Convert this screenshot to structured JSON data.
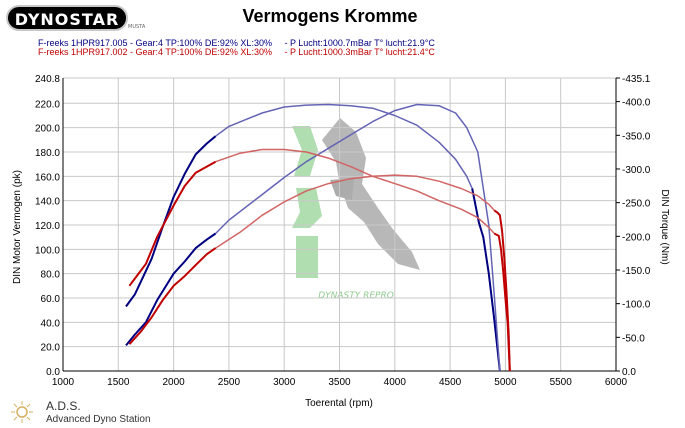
{
  "logo": {
    "text": "DYNOSTAR",
    "mark": "MUSTA"
  },
  "footer": {
    "title": "A.D.S.",
    "subtitle": "Advanced Dyno Station"
  },
  "watermark": {
    "text": "DYNASTY REPRO"
  },
  "runs": [
    {
      "text": "F-reeks 1HPR917.005 - Gear:4 TP:100% DE:92% XL:30%     - P Lucht:1000.7mBar T° lucht:21.9°C",
      "color": "#000080"
    },
    {
      "text": "F-reeks 1HPR917.002 - Gear:4 TP:100% DE:92% XL:30%     - P Lucht:1000.3mBar T° lucht:21.4°C",
      "color": "#c00000"
    }
  ],
  "chart_data": {
    "type": "line",
    "title": "Vermogens Kromme",
    "xlabel": "Toerental (rpm)",
    "ylabel_left": "DIN Motor Vermogen (pk)",
    "ylabel_right": "DIN Torque (Nm)",
    "xlim": [
      1000,
      6000
    ],
    "ylim_left": [
      0,
      240.8
    ],
    "ylim_right": [
      0,
      435.1
    ],
    "x_ticks": [
      "1000",
      "1500",
      "2000",
      "2500",
      "3000",
      "3500",
      "4000",
      "4500",
      "5000",
      "5500",
      "6000"
    ],
    "y_left_ticks": [
      "0.0",
      "20.0",
      "40.0",
      "60.0",
      "80.0",
      "100.0",
      "120.0",
      "140.0",
      "160.0",
      "180.0",
      "200.0",
      "220.0",
      "240.8"
    ],
    "y_right_ticks": [
      "0.0",
      "-50.0",
      "-100.0",
      "-150.0",
      "-200.0",
      "-250.0",
      "-300.0",
      "-350.0",
      "-400.0",
      "-435.1"
    ],
    "grid": true,
    "series": [
      {
        "color": "#000080",
        "axis": "left",
        "measure": "power",
        "style": "dark",
        "points": [
          [
            1570,
            53
          ],
          [
            1650,
            63
          ],
          [
            1800,
            92
          ],
          [
            1900,
            118
          ],
          [
            2000,
            143
          ],
          [
            2100,
            162
          ],
          [
            2200,
            178
          ],
          [
            2300,
            187
          ],
          [
            2380,
            193
          ]
        ]
      },
      {
        "color": "#6464b4",
        "axis": "left",
        "measure": "power",
        "style": "light",
        "points": [
          [
            2380,
            193
          ],
          [
            2500,
            201
          ],
          [
            2800,
            212
          ],
          [
            3000,
            217
          ],
          [
            3200,
            218.5
          ],
          [
            3400,
            219
          ],
          [
            3600,
            218
          ],
          [
            3800,
            216
          ],
          [
            4000,
            210
          ],
          [
            4200,
            202
          ],
          [
            4400,
            188
          ],
          [
            4550,
            174
          ],
          [
            4650,
            160
          ],
          [
            4700,
            150
          ],
          [
            4760,
            122
          ],
          [
            4800,
            110
          ],
          [
            4850,
            80
          ],
          [
            4900,
            42
          ],
          [
            4950,
            0
          ]
        ]
      },
      {
        "color": "#000080",
        "axis": "left",
        "measure": "power",
        "style": "dark",
        "points": [
          [
            4700,
            150
          ],
          [
            4760,
            122
          ],
          [
            4800,
            110
          ],
          [
            4850,
            80
          ],
          [
            4900,
            42
          ],
          [
            4950,
            0
          ]
        ]
      },
      {
        "color": "#000080",
        "axis": "left",
        "measure": "torque_curve",
        "style": "dark",
        "points": [
          [
            1570,
            21
          ],
          [
            1650,
            30
          ],
          [
            1750,
            40
          ],
          [
            1850,
            58
          ],
          [
            2000,
            80
          ],
          [
            2100,
            90
          ],
          [
            2200,
            101
          ],
          [
            2300,
            108
          ],
          [
            2380,
            113
          ]
        ]
      },
      {
        "color": "#6464b4",
        "axis": "left",
        "measure": "torque_curve",
        "style": "light",
        "points": [
          [
            2380,
            113
          ],
          [
            2500,
            124
          ],
          [
            2800,
            145
          ],
          [
            3000,
            159
          ],
          [
            3200,
            172
          ],
          [
            3400,
            183
          ],
          [
            3600,
            194
          ],
          [
            3800,
            205
          ],
          [
            4000,
            214
          ],
          [
            4200,
            219
          ],
          [
            4400,
            218
          ],
          [
            4550,
            212
          ],
          [
            4650,
            200
          ],
          [
            4750,
            180
          ],
          [
            4800,
            150
          ],
          [
            4850,
            120
          ],
          [
            4900,
            62
          ],
          [
            4950,
            0
          ]
        ]
      },
      {
        "color": "#c00000",
        "axis": "left",
        "measure": "power",
        "style": "dark",
        "points": [
          [
            1600,
            70
          ],
          [
            1650,
            76
          ],
          [
            1750,
            88
          ],
          [
            1850,
            110
          ],
          [
            2000,
            136
          ],
          [
            2100,
            152
          ],
          [
            2200,
            163
          ],
          [
            2300,
            168
          ],
          [
            2380,
            172
          ]
        ]
      },
      {
        "color": "#d26464",
        "axis": "left",
        "measure": "power",
        "style": "light",
        "points": [
          [
            2380,
            172
          ],
          [
            2600,
            179
          ],
          [
            2800,
            182
          ],
          [
            3000,
            182
          ],
          [
            3200,
            180
          ],
          [
            3400,
            175
          ],
          [
            3600,
            168
          ],
          [
            3800,
            160
          ],
          [
            4000,
            154
          ],
          [
            4200,
            148
          ],
          [
            4400,
            140
          ],
          [
            4600,
            133
          ],
          [
            4750,
            126
          ],
          [
            4850,
            118
          ],
          [
            4900,
            113
          ]
        ]
      },
      {
        "color": "#c00000",
        "axis": "left",
        "measure": "power",
        "style": "dark",
        "points": [
          [
            4900,
            113
          ],
          [
            4920,
            112
          ],
          [
            4940,
            111
          ],
          [
            4960,
            100
          ],
          [
            4980,
            82
          ],
          [
            5000,
            60
          ],
          [
            5020,
            40
          ],
          [
            5040,
            0
          ]
        ]
      },
      {
        "color": "#c00000",
        "axis": "left",
        "measure": "torque_curve",
        "style": "dark",
        "points": [
          [
            1600,
            22
          ],
          [
            1700,
            32
          ],
          [
            1800,
            44
          ],
          [
            1900,
            58
          ],
          [
            2000,
            70
          ],
          [
            2100,
            78
          ],
          [
            2200,
            87
          ],
          [
            2300,
            96
          ],
          [
            2380,
            101
          ]
        ]
      },
      {
        "color": "#d26464",
        "axis": "left",
        "measure": "torque_curve",
        "style": "light",
        "points": [
          [
            2380,
            101
          ],
          [
            2600,
            114
          ],
          [
            2800,
            128
          ],
          [
            3000,
            139
          ],
          [
            3200,
            148
          ],
          [
            3400,
            154
          ],
          [
            3600,
            158
          ],
          [
            3800,
            160
          ],
          [
            4000,
            161
          ],
          [
            4200,
            160
          ],
          [
            4400,
            156
          ],
          [
            4600,
            150
          ],
          [
            4750,
            144
          ],
          [
            4850,
            137
          ],
          [
            4900,
            132
          ]
        ]
      },
      {
        "color": "#c00000",
        "axis": "left",
        "measure": "torque_curve",
        "style": "dark",
        "points": [
          [
            4900,
            132
          ],
          [
            4930,
            130
          ],
          [
            4950,
            128
          ],
          [
            4970,
            115
          ],
          [
            4990,
            93
          ],
          [
            5010,
            65
          ],
          [
            5030,
            30
          ],
          [
            5040,
            0
          ]
        ]
      }
    ]
  }
}
